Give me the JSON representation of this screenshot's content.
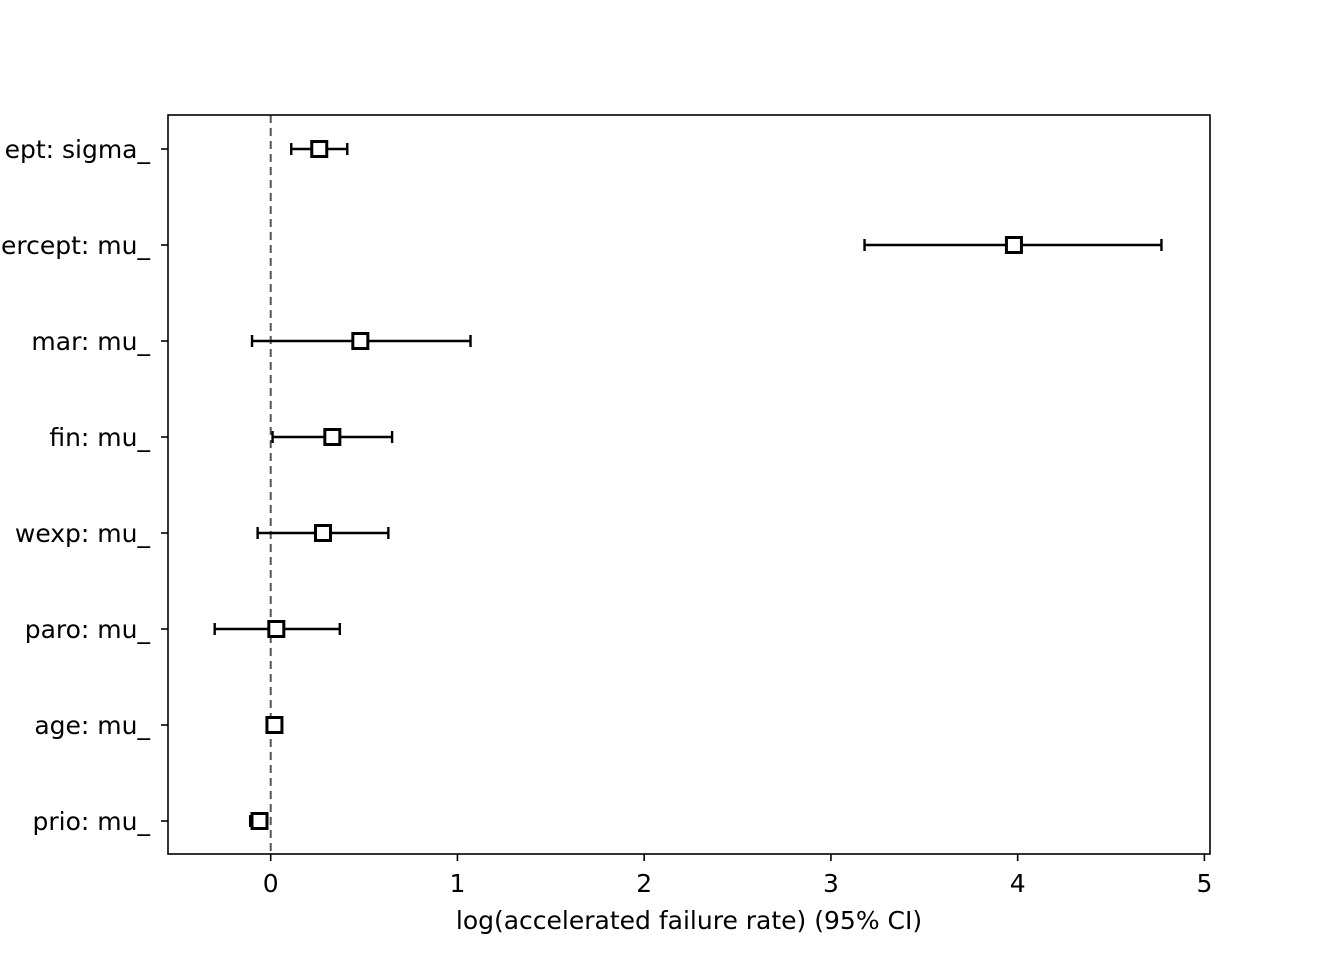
{
  "chart_data": {
    "type": "forest",
    "title": "",
    "xlabel": "log(accelerated failure rate) (95% CI)",
    "ylabel": "",
    "xlim": [
      -0.55,
      5.03
    ],
    "xticks": [
      0,
      1,
      2,
      3,
      4,
      5
    ],
    "xtick_labels": [
      "0",
      "1",
      "2",
      "3",
      "4",
      "5"
    ],
    "reference_line": 0,
    "grid": false,
    "rows": [
      {
        "label": "Intercept: sigma_",
        "shown_label": "ept: sigma_",
        "estimate": 0.26,
        "lower": 0.11,
        "upper": 0.41
      },
      {
        "label": "Intercept: mu_",
        "shown_label": "ercept: mu_",
        "estimate": 3.98,
        "lower": 3.18,
        "upper": 4.77
      },
      {
        "label": "mar: mu_",
        "shown_label": "mar: mu_",
        "estimate": 0.48,
        "lower": -0.1,
        "upper": 1.07
      },
      {
        "label": "fin: mu_",
        "shown_label": "fin: mu_",
        "estimate": 0.33,
        "lower": 0.01,
        "upper": 0.65
      },
      {
        "label": "wexp: mu_",
        "shown_label": "wexp: mu_",
        "estimate": 0.28,
        "lower": -0.07,
        "upper": 0.63
      },
      {
        "label": "paro: mu_",
        "shown_label": "paro: mu_",
        "estimate": 0.03,
        "lower": -0.3,
        "upper": 0.37
      },
      {
        "label": "age: mu_",
        "shown_label": "age: mu_",
        "estimate": 0.02,
        "lower": 0.01,
        "upper": 0.04
      },
      {
        "label": "prio: mu_",
        "shown_label": "prio: mu_",
        "estimate": -0.06,
        "lower": -0.11,
        "upper": -0.02
      }
    ]
  }
}
